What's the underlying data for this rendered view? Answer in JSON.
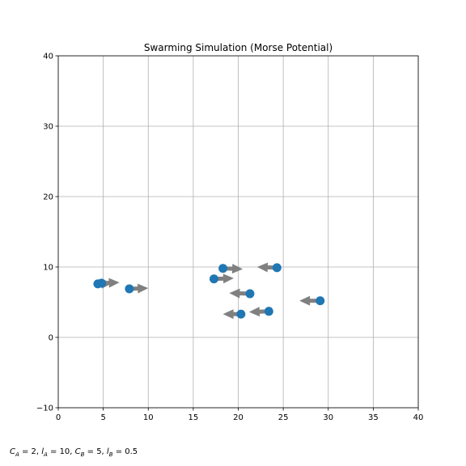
{
  "chart_data": {
    "type": "scatter",
    "title": "Swarming Simulation (Morse Potential)",
    "xlabel": "",
    "ylabel": "",
    "xlim": [
      0,
      40
    ],
    "ylim": [
      -10,
      40
    ],
    "xticks": [
      0,
      5,
      10,
      15,
      20,
      25,
      30,
      35,
      40
    ],
    "yticks": [
      -10,
      0,
      10,
      20,
      30,
      40
    ],
    "grid": true,
    "point_color": "#1f77b4",
    "arrow_color": "#808080",
    "points": [
      {
        "x": 4.4,
        "y": 7.6,
        "vx": 1.6,
        "vy": 0.1
      },
      {
        "x": 4.8,
        "y": 7.7,
        "vx": 2.0,
        "vy": 0.1
      },
      {
        "x": 7.9,
        "y": 6.9,
        "vx": 2.1,
        "vy": 0.1
      },
      {
        "x": 17.3,
        "y": 8.3,
        "vx": 2.2,
        "vy": 0.1
      },
      {
        "x": 18.3,
        "y": 9.8,
        "vx": 2.2,
        "vy": -0.1
      },
      {
        "x": 24.3,
        "y": 9.9,
        "vx": -2.2,
        "vy": 0.1
      },
      {
        "x": 21.3,
        "y": 6.2,
        "vx": -2.3,
        "vy": 0.1
      },
      {
        "x": 29.1,
        "y": 5.2,
        "vx": -2.3,
        "vy": 0.0
      },
      {
        "x": 23.4,
        "y": 3.7,
        "vx": -2.2,
        "vy": -0.1
      },
      {
        "x": 20.3,
        "y": 3.3,
        "vx": -2.0,
        "vy": 0.0
      }
    ]
  },
  "caption": {
    "ca_sym": "C",
    "ca_sub": "A",
    "ca_val": " = 2, ",
    "la_sym": "l",
    "la_sub": "A",
    "la_val": " = 10, ",
    "cb_sym": "C",
    "cb_sub": "B",
    "cb_val": " = 5, ",
    "lb_sym": "l",
    "lb_sub": "B",
    "lb_val": " = 0.5"
  }
}
